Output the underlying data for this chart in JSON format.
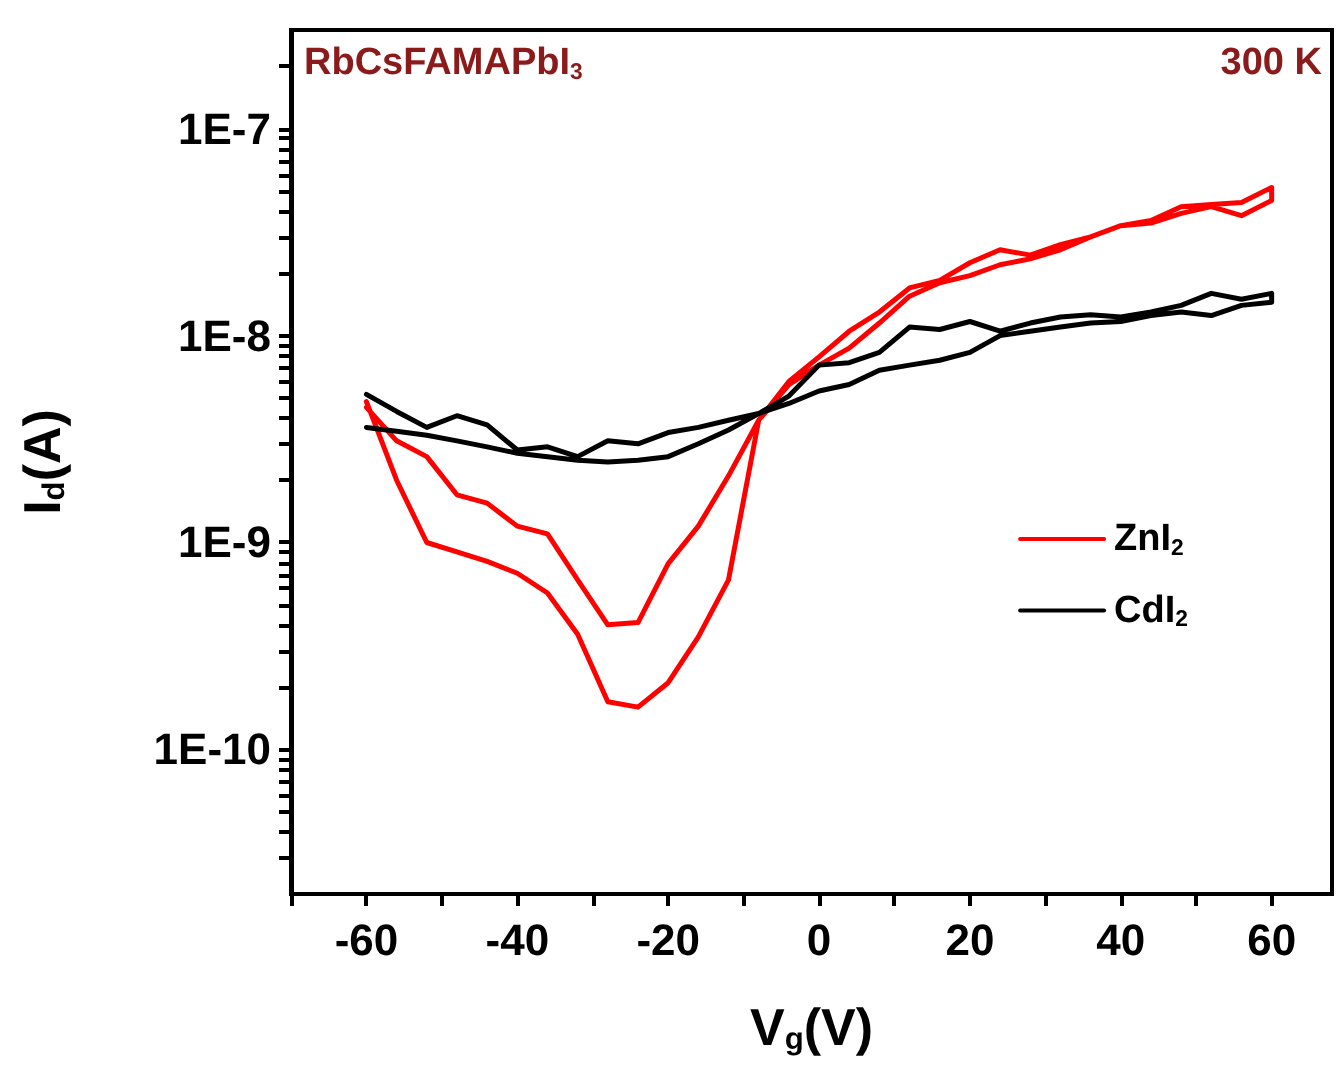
{
  "chart_data": {
    "type": "line",
    "xlabel": "V$_{g}$(V)",
    "ylabel": "I$_{d}$(A)",
    "annotations": [
      "RbCsFAMAPbI$_{3}$",
      "300 K"
    ],
    "log": "y",
    "grid": false,
    "legend": "right",
    "marker": "none",
    "line_style": "solid",
    "xlim": [
      -70,
      68
    ],
    "xticks": [
      {
        "value": -70,
        "label": null
      },
      -60,
      {
        "value": -50,
        "label": null
      },
      -40,
      {
        "value": -30,
        "label": null
      },
      -20,
      {
        "value": -10,
        "label": null
      },
      0,
      {
        "value": 10,
        "label": null
      },
      20,
      {
        "value": 30,
        "label": null
      },
      40,
      {
        "value": 50,
        "label": null
      },
      60
    ],
    "ylim": [
      2e-11,
      3e-07
    ],
    "yticks": [
      {
        "value": 3e-11,
        "label": null
      },
      {
        "value": 4e-11,
        "label": null
      },
      {
        "value": 5e-11,
        "label": null
      },
      {
        "value": 6e-11,
        "label": null
      },
      {
        "value": 7e-11,
        "label": null
      },
      {
        "value": 8e-11,
        "label": null
      },
      {
        "value": 9e-11,
        "label": null
      },
      {
        "value": 1e-10,
        "label": "1E-10"
      },
      {
        "value": 2e-10,
        "label": null
      },
      {
        "value": 3e-10,
        "label": null
      },
      {
        "value": 4e-10,
        "label": null
      },
      {
        "value": 5e-10,
        "label": null
      },
      {
        "value": 6e-10,
        "label": null
      },
      {
        "value": 7e-10,
        "label": null
      },
      {
        "value": 8e-10,
        "label": null
      },
      {
        "value": 9e-10,
        "label": null
      },
      {
        "value": 1e-09,
        "label": "1E-9"
      },
      {
        "value": 2e-09,
        "label": null
      },
      {
        "value": 3e-09,
        "label": null
      },
      {
        "value": 4e-09,
        "label": null
      },
      {
        "value": 5e-09,
        "label": null
      },
      {
        "value": 6e-09,
        "label": null
      },
      {
        "value": 7e-09,
        "label": null
      },
      {
        "value": 8e-09,
        "label": null
      },
      {
        "value": 9e-09,
        "label": null
      },
      {
        "value": 1e-08,
        "label": "1E-8"
      },
      {
        "value": 2e-08,
        "label": null
      },
      {
        "value": 3e-08,
        "label": null
      },
      {
        "value": 4e-08,
        "label": null
      },
      {
        "value": 5e-08,
        "label": null
      },
      {
        "value": 6e-08,
        "label": null
      },
      {
        "value": 7e-08,
        "label": null
      },
      {
        "value": 8e-08,
        "label": null
      },
      {
        "value": 9e-08,
        "label": null
      },
      {
        "value": 1e-07,
        "label": "1E-7"
      },
      {
        "value": 2e-07,
        "label": null
      }
    ],
    "series": [
      {
        "name": "ZnI$_{2}$",
        "color": "#ff0000",
        "x": [
          -60,
          -56,
          -52,
          -48,
          -44,
          -40,
          -36,
          -32,
          -28,
          -24,
          -20,
          -16,
          -12,
          -8,
          -4,
          0,
          4,
          8,
          12,
          16,
          20,
          24,
          28,
          32,
          36,
          40,
          44,
          48,
          52,
          56,
          60,
          60,
          56,
          52,
          48,
          44,
          40,
          36,
          32,
          28,
          24,
          20,
          16,
          12,
          8,
          4,
          0,
          -4,
          -8,
          -12,
          -16,
          -20,
          -24,
          -28,
          -32,
          -36,
          -40,
          -44,
          -48,
          -52,
          -56,
          -60
        ],
        "values": [
          4.8e-09,
          2e-09,
          1e-09,
          9e-10,
          8.1e-10,
          7.1e-10,
          5.7e-10,
          3.6e-10,
          1.7e-10,
          1.6e-10,
          2.1e-10,
          3.5e-10,
          6.6e-10,
          3.9e-09,
          5.8e-09,
          7.2e-09,
          8.7e-09,
          1.15e-08,
          1.55e-08,
          1.8e-08,
          1.95e-08,
          2.2e-08,
          2.35e-08,
          2.6e-08,
          3e-08,
          3.4e-08,
          3.5e-08,
          3.9e-08,
          4.2e-08,
          3.8e-08,
          4.5e-08,
          5.2e-08,
          4.4e-08,
          4.3e-08,
          4.2e-08,
          3.6e-08,
          3.4e-08,
          3e-08,
          2.75e-08,
          2.45e-08,
          2.6e-08,
          2.25e-08,
          1.85e-08,
          1.7e-08,
          1.3e-08,
          1.05e-08,
          7.9e-09,
          6e-09,
          3.9e-09,
          2.1e-09,
          1.2e-09,
          7.9e-10,
          4.1e-10,
          4e-10,
          6.6e-10,
          1.1e-09,
          1.2e-09,
          1.55e-09,
          1.7e-09,
          2.6e-09,
          3.1e-09,
          4.5e-09
        ]
      },
      {
        "name": "CdI$_{2}$",
        "color": "#000000",
        "x": [
          -60,
          -56,
          -52,
          -48,
          -44,
          -40,
          -36,
          -32,
          -28,
          -24,
          -20,
          -16,
          -12,
          -8,
          -4,
          0,
          4,
          8,
          12,
          16,
          20,
          24,
          28,
          32,
          36,
          40,
          44,
          48,
          52,
          56,
          60,
          60,
          56,
          52,
          48,
          44,
          40,
          36,
          32,
          28,
          24,
          20,
          16,
          12,
          8,
          4,
          0,
          -4,
          -8,
          -12,
          -16,
          -20,
          -24,
          -28,
          -32,
          -36,
          -40,
          -44,
          -48,
          -52,
          -56,
          -60
        ],
        "values": [
          5.2e-09,
          4.3e-09,
          3.6e-09,
          4.1e-09,
          3.7e-09,
          2.8e-09,
          2.9e-09,
          2.6e-09,
          3.1e-09,
          3e-09,
          3.4e-09,
          3.6e-09,
          3.9e-09,
          4.2e-09,
          5.1e-09,
          7.2e-09,
          7.4e-09,
          8.3e-09,
          1.1e-08,
          1.07e-08,
          1.17e-08,
          1.05e-08,
          1.15e-08,
          1.23e-08,
          1.26e-08,
          1.23e-08,
          1.3e-08,
          1.4e-08,
          1.6e-08,
          1.5e-08,
          1.6e-08,
          1.45e-08,
          1.4e-08,
          1.25e-08,
          1.3e-08,
          1.25e-08,
          1.17e-08,
          1.15e-08,
          1.1e-08,
          1.05e-08,
          1e-08,
          8.3e-09,
          7.6e-09,
          7.2e-09,
          6.8e-09,
          5.8e-09,
          5.4e-09,
          4.7e-09,
          4.2e-09,
          3.5e-09,
          3e-09,
          2.6e-09,
          2.5e-09,
          2.45e-09,
          2.5e-09,
          2.6e-09,
          2.7e-09,
          2.9e-09,
          3.1e-09,
          3.3e-09,
          3.45e-09,
          3.6e-09
        ]
      }
    ]
  }
}
